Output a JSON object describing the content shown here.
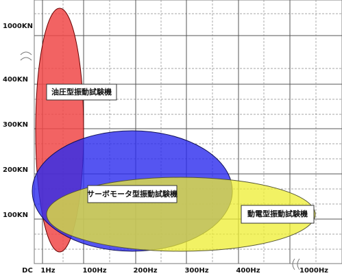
{
  "y_axis": {
    "labels": [
      "1000KN",
      "400KN",
      "300KN",
      "200KN",
      "100KN"
    ]
  },
  "x_axis": {
    "labels": [
      "DC",
      "1Hz",
      "100Hz",
      "200Hz",
      "300Hz",
      "400Hz",
      "1000Hz"
    ]
  },
  "regions": [
    {
      "label": "油圧型振動試験機"
    },
    {
      "label": "サーボモータ型振動試験機"
    },
    {
      "label": "動電型振動試験機"
    }
  ]
}
